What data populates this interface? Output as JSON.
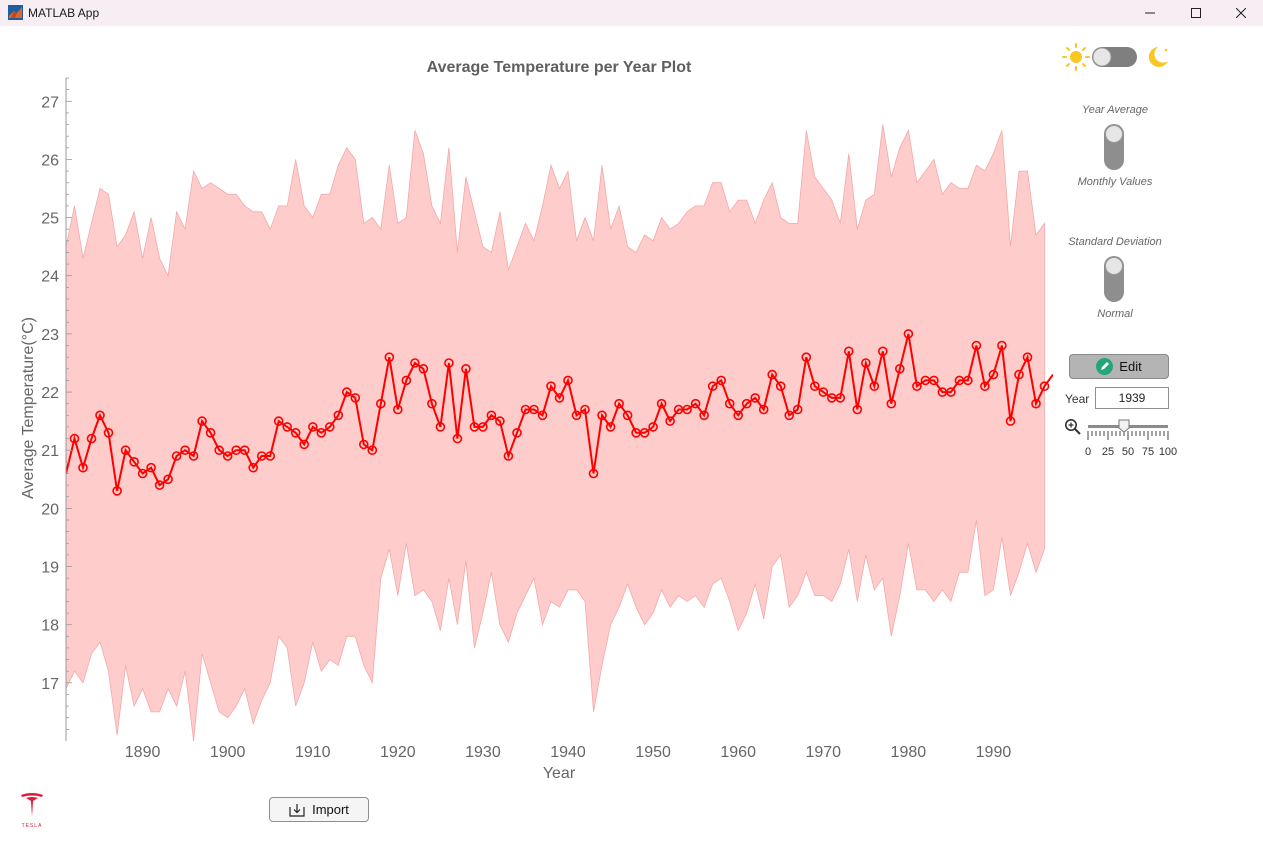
{
  "window": {
    "title": "MATLAB App"
  },
  "chart_data": {
    "type": "line",
    "title": "Average Temperature per Year Plot",
    "xlabel": "Year",
    "ylabel": "Average Temperature(°C)",
    "xlim": [
      1881,
      1997
    ],
    "ylim": [
      16,
      27.4
    ],
    "xticks": [
      1890,
      1900,
      1910,
      1920,
      1930,
      1940,
      1950,
      1960,
      1970,
      1980,
      1990
    ],
    "yticks": [
      17,
      18,
      19,
      20,
      21,
      22,
      23,
      24,
      25,
      26,
      27
    ],
    "grid": false,
    "x_start": 1882,
    "series": [
      {
        "kind": "line-markers",
        "color": "#ff0000",
        "values": [
          21.2,
          20.7,
          21.2,
          21.6,
          21.3,
          20.3,
          21.0,
          20.8,
          20.6,
          20.7,
          20.4,
          20.5,
          20.9,
          21.0,
          20.9,
          21.5,
          21.3,
          21.0,
          20.9,
          21.0,
          21.0,
          20.7,
          20.9,
          20.9,
          21.5,
          21.4,
          21.3,
          21.1,
          21.4,
          21.3,
          21.4,
          21.6,
          22.0,
          21.9,
          21.1,
          21.0,
          21.8,
          22.6,
          21.7,
          22.2,
          22.5,
          22.4,
          21.8,
          21.4,
          22.5,
          21.2,
          22.4,
          21.4,
          21.4,
          21.6,
          21.5,
          20.9,
          21.3,
          21.7,
          21.7,
          21.6,
          22.1,
          21.9,
          22.2,
          21.6,
          21.7,
          20.6,
          21.6,
          21.4,
          21.8,
          21.6,
          21.3,
          21.3,
          21.4,
          21.8,
          21.5,
          21.7,
          21.7,
          21.8,
          21.6,
          22.1,
          22.2,
          21.8,
          21.6,
          21.8,
          21.9,
          21.7,
          22.3,
          22.1,
          21.6,
          21.7,
          22.6,
          22.1,
          22.0,
          21.9,
          21.9,
          22.7,
          21.7,
          22.5,
          22.1,
          22.7,
          21.8,
          22.4,
          23.0,
          22.1,
          22.2,
          22.2,
          22.0,
          22.0,
          22.2,
          22.2,
          22.8,
          22.1,
          22.3,
          22.8,
          21.5,
          22.3,
          22.6,
          21.8,
          22.1
        ]
      },
      {
        "kind": "band-upper",
        "color": "#ffcccc",
        "values": [
          25.2,
          24.3,
          24.9,
          25.5,
          25.4,
          24.5,
          24.7,
          25.1,
          24.3,
          25.0,
          24.3,
          24.0,
          25.1,
          24.8,
          25.8,
          25.5,
          25.6,
          25.5,
          25.4,
          25.4,
          25.2,
          25.1,
          25.1,
          24.8,
          25.2,
          25.2,
          26.0,
          25.2,
          25.0,
          25.4,
          25.4,
          25.9,
          26.2,
          26.0,
          24.9,
          25.0,
          24.8,
          25.9,
          24.9,
          25.0,
          26.5,
          26.1,
          25.2,
          24.9,
          26.2,
          24.4,
          25.7,
          25.1,
          24.5,
          24.4,
          25.1,
          24.1,
          24.5,
          24.9,
          24.6,
          25.2,
          25.9,
          25.5,
          25.8,
          24.6,
          25.0,
          24.6,
          25.9,
          24.8,
          25.2,
          24.5,
          24.4,
          24.7,
          24.6,
          25.0,
          24.8,
          24.9,
          25.1,
          25.2,
          25.2,
          25.6,
          25.6,
          25.1,
          25.3,
          25.3,
          24.9,
          25.3,
          25.6,
          25.0,
          24.9,
          24.9,
          26.5,
          25.7,
          25.5,
          25.3,
          24.9,
          26.1,
          24.8,
          25.3,
          25.4,
          26.6,
          25.7,
          26.2,
          26.5,
          25.6,
          25.8,
          26.0,
          25.4,
          25.6,
          25.5,
          25.5,
          25.9,
          25.8,
          26.1,
          26.5,
          24.5,
          25.8,
          25.8,
          24.7,
          24.9
        ]
      },
      {
        "kind": "band-lower",
        "color": "#ffcccc",
        "values": [
          17.2,
          17.0,
          17.5,
          17.7,
          17.2,
          16.1,
          17.3,
          16.6,
          16.9,
          16.5,
          16.5,
          16.9,
          16.6,
          17.2,
          16.0,
          17.5,
          17.0,
          16.5,
          16.4,
          16.6,
          16.9,
          16.3,
          16.7,
          17.0,
          17.8,
          17.6,
          16.6,
          17.0,
          17.7,
          17.2,
          17.4,
          17.3,
          17.8,
          17.8,
          17.3,
          17.0,
          18.8,
          19.3,
          18.5,
          19.4,
          18.5,
          18.6,
          18.4,
          17.9,
          18.8,
          18.0,
          19.1,
          17.6,
          18.2,
          18.9,
          18.0,
          17.7,
          18.2,
          18.5,
          18.8,
          18.0,
          18.4,
          18.3,
          18.6,
          18.6,
          18.4,
          16.5,
          17.3,
          18.0,
          18.3,
          18.7,
          18.3,
          18.0,
          18.2,
          18.6,
          18.3,
          18.5,
          18.4,
          18.5,
          18.3,
          18.7,
          18.8,
          18.4,
          17.9,
          18.2,
          18.7,
          18.1,
          19.0,
          19.2,
          18.3,
          18.5,
          18.9,
          18.5,
          18.5,
          18.4,
          18.7,
          19.3,
          18.4,
          19.2,
          18.6,
          18.8,
          17.8,
          18.5,
          19.4,
          18.6,
          18.6,
          18.4,
          18.6,
          18.4,
          18.9,
          18.9,
          19.8,
          18.5,
          18.6,
          19.5,
          18.5,
          18.9,
          19.4,
          18.9,
          19.3
        ]
      }
    ]
  },
  "theme_toggle": {
    "state": "light"
  },
  "switches": {
    "year_average_label": "Year Average",
    "monthly_values_label": "Monthly Values",
    "standard_deviation_label": "Standard Deviation",
    "normal_label": "Normal"
  },
  "edit_button": {
    "label": "Edit"
  },
  "year_field": {
    "label": "Year",
    "value": "1939"
  },
  "zoom_slider": {
    "value": 45,
    "ticks": [
      "0",
      "25",
      "50",
      "75",
      "100"
    ]
  },
  "import_button": {
    "label": "Import"
  },
  "logo": {
    "text": "TESLA",
    "icon": "tesla-logo-icon"
  }
}
